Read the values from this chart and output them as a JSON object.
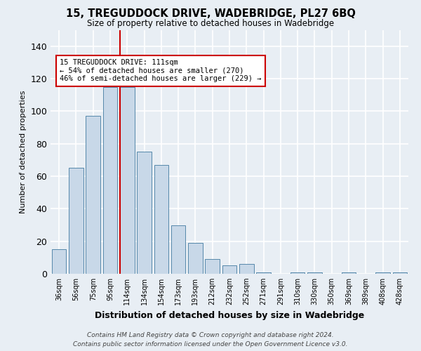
{
  "title": "15, TREGUDDOCK DRIVE, WADEBRIDGE, PL27 6BQ",
  "subtitle": "Size of property relative to detached houses in Wadebridge",
  "xlabel": "Distribution of detached houses by size in Wadebridge",
  "ylabel": "Number of detached properties",
  "categories": [
    "36sqm",
    "56sqm",
    "75sqm",
    "95sqm",
    "114sqm",
    "134sqm",
    "154sqm",
    "173sqm",
    "193sqm",
    "212sqm",
    "232sqm",
    "252sqm",
    "271sqm",
    "291sqm",
    "310sqm",
    "330sqm",
    "350sqm",
    "369sqm",
    "389sqm",
    "408sqm",
    "428sqm"
  ],
  "values": [
    15,
    65,
    97,
    115,
    115,
    75,
    67,
    30,
    19,
    9,
    5,
    6,
    1,
    0,
    1,
    1,
    0,
    1,
    0,
    1,
    1
  ],
  "bar_color": "#c8d8e8",
  "bar_edge_color": "#5588aa",
  "highlight_index": 4,
  "highlight_color": "#cc0000",
  "ylim": [
    0,
    150
  ],
  "yticks": [
    0,
    20,
    40,
    60,
    80,
    100,
    120,
    140
  ],
  "annotation_title": "15 TREGUDDOCK DRIVE: 111sqm",
  "annotation_line1": "← 54% of detached houses are smaller (270)",
  "annotation_line2": "46% of semi-detached houses are larger (229) →",
  "footer1": "Contains HM Land Registry data © Crown copyright and database right 2024.",
  "footer2": "Contains public sector information licensed under the Open Government Licence v3.0.",
  "background_color": "#e8eef4",
  "plot_background": "#e8eef4"
}
